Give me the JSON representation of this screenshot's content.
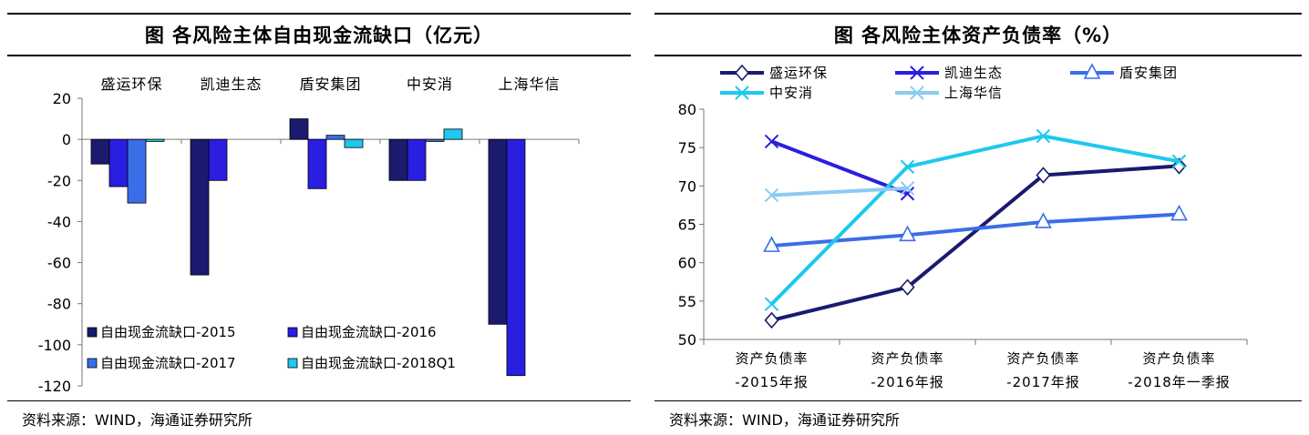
{
  "left": {
    "title": "图  各风险主体自由现金流缺口（亿元）",
    "source": "资料来源：WIND，海通证券研究所",
    "chart_data": {
      "type": "bar",
      "title": "各风险主体自由现金流缺口（亿元）",
      "categories": [
        "盛运环保",
        "凯迪生态",
        "盾安集团",
        "中安消",
        "上海华信"
      ],
      "ylim": [
        -120,
        20
      ],
      "yticks": [
        20,
        0,
        -20,
        -40,
        -60,
        -80,
        -100,
        -120
      ],
      "series": [
        {
          "name": "自由现金流缺口-2015",
          "color": "#1a1a6e",
          "values": [
            -12,
            -66,
            10,
            -20,
            -90
          ]
        },
        {
          "name": "自由现金流缺口-2016",
          "color": "#2a1ee0",
          "values": [
            -23,
            -20,
            -24,
            -20,
            -115
          ]
        },
        {
          "name": "自由现金流缺口-2017",
          "color": "#3a6ee8",
          "values": [
            -31,
            null,
            2,
            -1,
            null
          ]
        },
        {
          "name": "自由现金流缺口-2018Q1",
          "color": "#1ec8ee",
          "values": [
            -1,
            null,
            -4,
            5,
            null
          ]
        }
      ]
    }
  },
  "right": {
    "title": "图  各风险主体资产负债率（%）",
    "source": "资料来源：WIND，海通证券研究所",
    "chart_data": {
      "type": "line",
      "title": "各风险主体资产负债率（%）",
      "categories": [
        [
          "资产负债率",
          "-2015年报"
        ],
        [
          "资产负债率",
          "-2016年报"
        ],
        [
          "资产负债率",
          "-2017年报"
        ],
        [
          "资产负债率",
          "-2018年一季报"
        ]
      ],
      "ylim": [
        50,
        80
      ],
      "yticks": [
        80,
        75,
        70,
        65,
        60,
        55,
        50
      ],
      "series": [
        {
          "name": "盛运环保",
          "color": "#1a1a6e",
          "marker": "diamond",
          "values": [
            52.5,
            56.8,
            71.4,
            72.6
          ]
        },
        {
          "name": "凯迪生态",
          "color": "#2a1ee0",
          "marker": "x",
          "values": [
            75.8,
            69.0,
            null,
            null
          ]
        },
        {
          "name": "盾安集团",
          "color": "#3a6ee8",
          "marker": "triangle",
          "values": [
            62.2,
            63.6,
            65.3,
            66.3
          ]
        },
        {
          "name": "中安消",
          "color": "#1ec8ee",
          "marker": "x",
          "values": [
            54.6,
            72.5,
            76.5,
            73.2
          ]
        },
        {
          "name": "上海华信",
          "color": "#8ccbf2",
          "marker": "x",
          "values": [
            68.8,
            69.7,
            null,
            null
          ]
        }
      ]
    }
  }
}
